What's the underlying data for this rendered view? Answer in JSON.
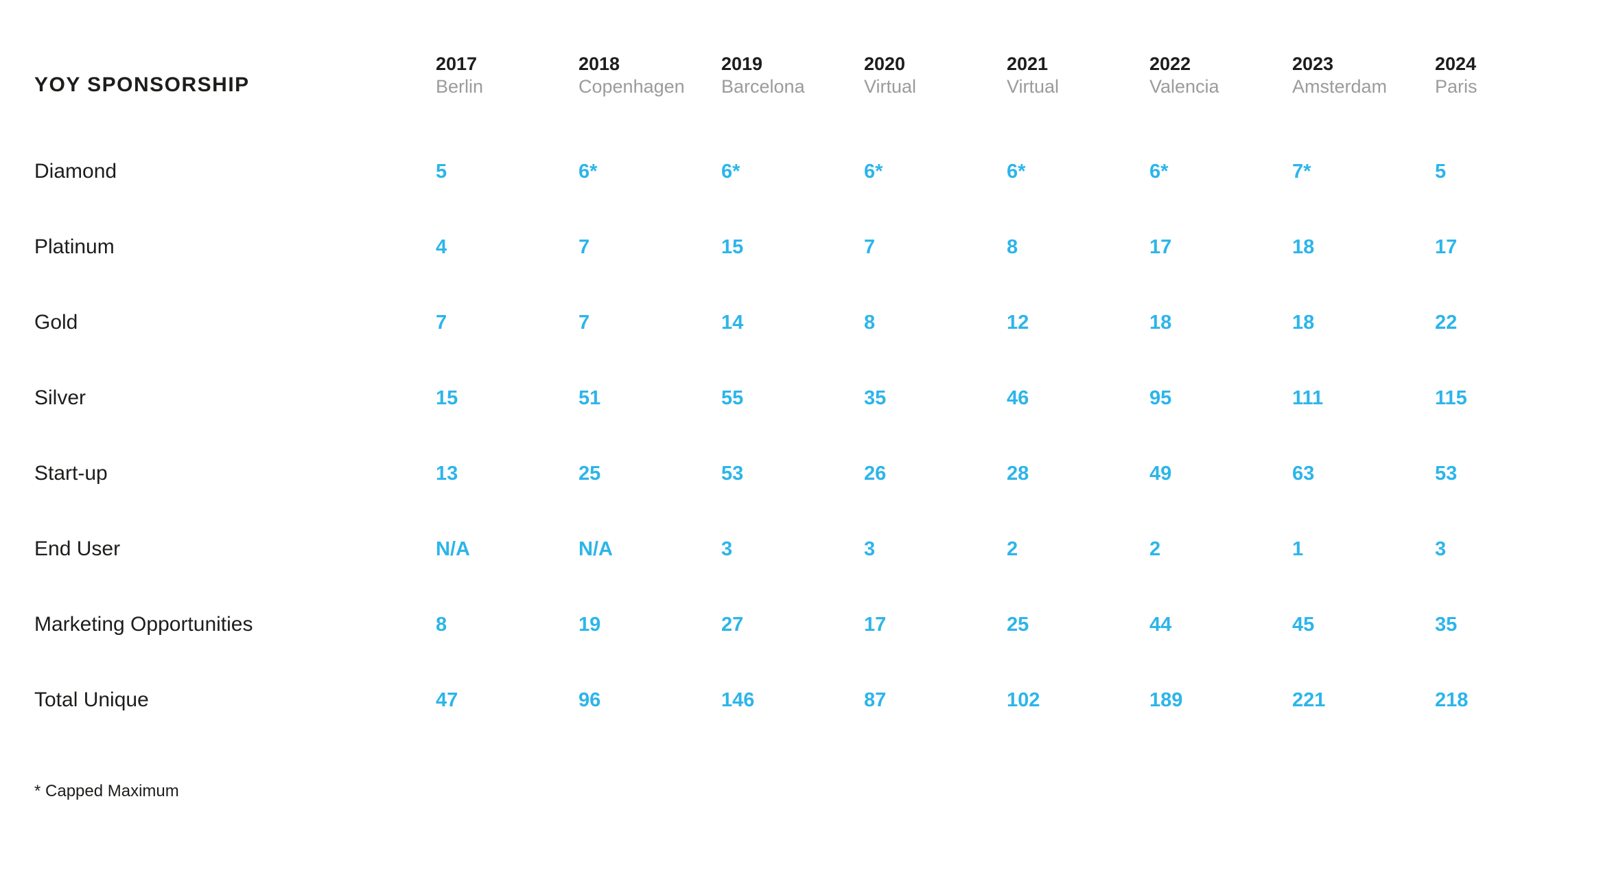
{
  "title": "YOY SPONSORSHIP",
  "footnote": "* Capped Maximum",
  "colors": {
    "value_text": "#2cb5ea",
    "label_text": "#1d1d1b",
    "city_text": "#9b9b9b",
    "background": "#ffffff"
  },
  "chart_data": {
    "type": "table",
    "title": "YOY SPONSORSHIP",
    "columns": [
      {
        "year": "2017",
        "city": "Berlin"
      },
      {
        "year": "2018",
        "city": "Copenhagen"
      },
      {
        "year": "2019",
        "city": "Barcelona"
      },
      {
        "year": "2020",
        "city": "Virtual"
      },
      {
        "year": "2021",
        "city": "Virtual"
      },
      {
        "year": "2022",
        "city": "Valencia"
      },
      {
        "year": "2023",
        "city": "Amsterdam"
      },
      {
        "year": "2024",
        "city": "Paris"
      }
    ],
    "rows": [
      {
        "label": "Diamond",
        "values": [
          "5",
          "6*",
          "6*",
          "6*",
          "6*",
          "6*",
          "7*",
          "5"
        ]
      },
      {
        "label": "Platinum",
        "values": [
          "4",
          "7",
          "15",
          "7",
          "8",
          "17",
          "18",
          "17"
        ]
      },
      {
        "label": "Gold",
        "values": [
          "7",
          "7",
          "14",
          "8",
          "12",
          "18",
          "18",
          "22"
        ]
      },
      {
        "label": "Silver",
        "values": [
          "15",
          "51",
          "55",
          "35",
          "46",
          "95",
          "111",
          "115"
        ]
      },
      {
        "label": "Start-up",
        "values": [
          "13",
          "25",
          "53",
          "26",
          "28",
          "49",
          "63",
          "53"
        ]
      },
      {
        "label": "End User",
        "values": [
          "N/A",
          "N/A",
          "3",
          "3",
          "2",
          "2",
          "1",
          "3"
        ]
      },
      {
        "label": "Marketing Opportunities",
        "values": [
          "8",
          "19",
          "27",
          "17",
          "25",
          "44",
          "45",
          "35"
        ]
      },
      {
        "label": "Total Unique",
        "values": [
          "47",
          "96",
          "146",
          "87",
          "102",
          "189",
          "221",
          "218"
        ]
      }
    ],
    "footnote": "* Capped Maximum",
    "layout": {
      "grid": "off",
      "legend": "none",
      "value_alignment": "left"
    }
  }
}
